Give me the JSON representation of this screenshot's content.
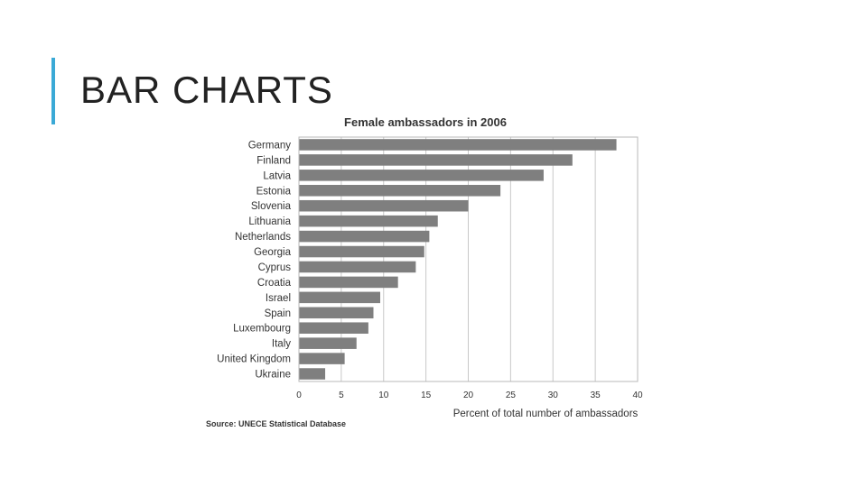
{
  "slide": {
    "title": "BAR CHARTS"
  },
  "colors": {
    "accent": "#3aa9d6",
    "bar": "#7f7f7f",
    "grid": "#c8c8c8",
    "frame": "#b8b8b8"
  },
  "source_note": "Source: UNECE Statistical Database",
  "chart_data": {
    "type": "bar",
    "orientation": "horizontal",
    "title": "Female ambassadors in 2006",
    "xlabel": "Percent of total number of ambassadors",
    "ylabel": "",
    "xlim": [
      0,
      40
    ],
    "xticks": [
      0,
      5,
      10,
      15,
      20,
      25,
      30,
      35,
      40
    ],
    "grid": true,
    "categories": [
      "Germany",
      "Finland",
      "Latvia",
      "Estonia",
      "Slovenia",
      "Lithuania",
      "Netherlands",
      "Georgia",
      "Cyprus",
      "Croatia",
      "Israel",
      "Spain",
      "Luxembourg",
      "Italy",
      "United Kingdom",
      "Ukraine"
    ],
    "values": [
      37.5,
      32.3,
      28.9,
      23.8,
      20.0,
      16.4,
      15.4,
      14.8,
      13.8,
      11.7,
      9.6,
      8.8,
      8.2,
      6.8,
      5.4,
      3.1
    ]
  }
}
